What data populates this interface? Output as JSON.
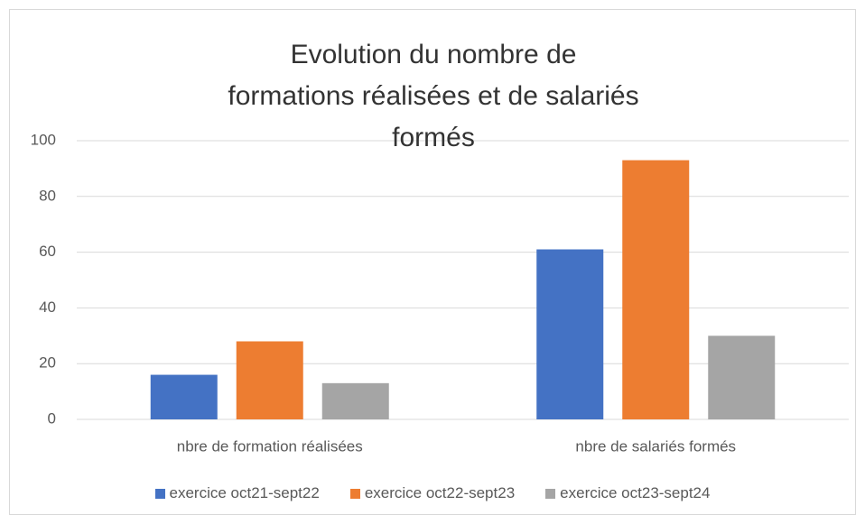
{
  "chart_data": {
    "type": "bar",
    "title": "Evolution du nombre de formations réalisées et de salariés formés",
    "categories": [
      "nbre de formation réalisées",
      "nbre de salariés formés"
    ],
    "series": [
      {
        "name": "exercice oct21-sept22",
        "color": "#4472c4",
        "values": [
          16,
          61
        ]
      },
      {
        "name": "exercice oct22-sept23",
        "color": "#ed7d31",
        "values": [
          28,
          93
        ]
      },
      {
        "name": "exercice oct23-sept24",
        "color": "#a5a5a5",
        "values": [
          13,
          30
        ]
      }
    ],
    "ylim": [
      0,
      100
    ],
    "yticks": [
      0,
      20,
      40,
      60,
      80,
      100
    ],
    "grid": true,
    "legend": "bottom"
  }
}
